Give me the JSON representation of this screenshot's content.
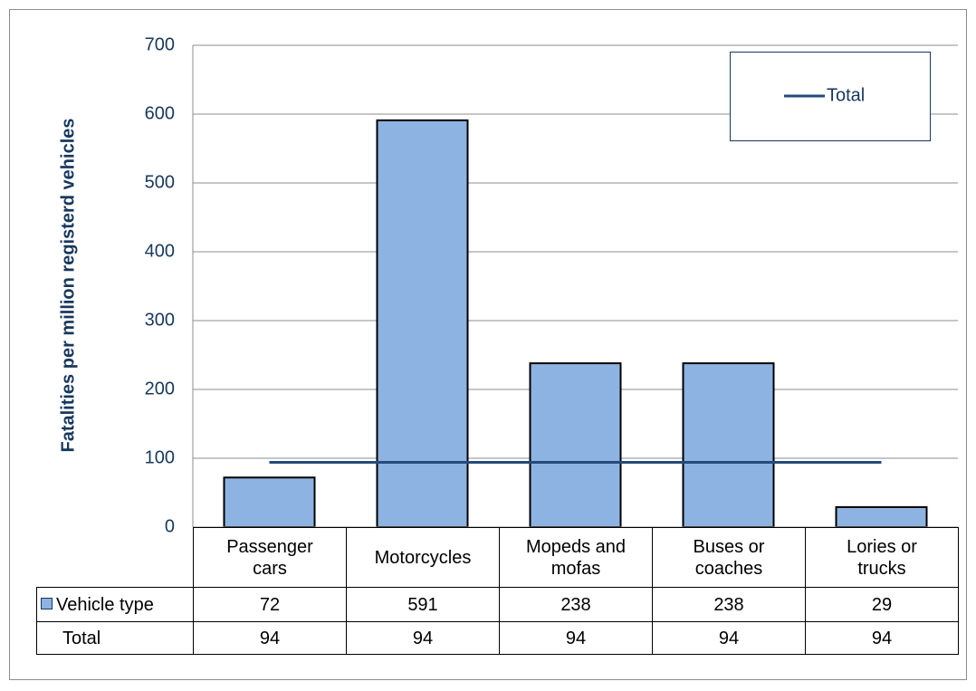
{
  "chart_data": {
    "type": "bar",
    "y_label": "Fatalities per million registerd vehicles",
    "categories": [
      "Passenger cars",
      "Motorcycles",
      "Mopeds and mofas",
      "Buses or coaches",
      "Lories or trucks"
    ],
    "series": [
      {
        "name": "Vehicle type",
        "type": "bar",
        "color": "#8db3e2",
        "values": [
          72,
          591,
          238,
          238,
          29
        ]
      },
      {
        "name": "Total",
        "type": "line",
        "color": "#254a7b",
        "values": [
          94,
          94,
          94,
          94,
          94
        ]
      }
    ],
    "ylim": [
      0,
      700
    ],
    "yticks": [
      0,
      100,
      200,
      300,
      400,
      500,
      600,
      700
    ],
    "grid": true,
    "legend": "top-right"
  }
}
